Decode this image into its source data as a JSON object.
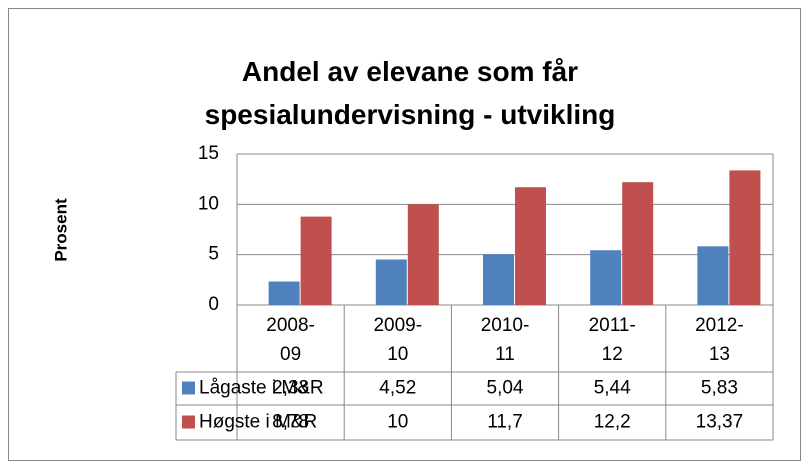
{
  "chart_data": {
    "type": "bar",
    "title": "Andel av elevane som får spesialundervisning - utvikling",
    "y_label": "Prosent",
    "categories": [
      "2008-09",
      "2009-10",
      "2010-11",
      "2011-12",
      "2012-13"
    ],
    "series": [
      {
        "name": "Lågaste i M&R",
        "color": "#4f81bd",
        "values": [
          2.33,
          4.52,
          5.04,
          5.44,
          5.83
        ],
        "value_labels": [
          "2,33",
          "4,52",
          "5,04",
          "5,44",
          "5,83"
        ]
      },
      {
        "name": "Høgste i M&R",
        "color": "#c0504d",
        "values": [
          8.78,
          10,
          11.7,
          12.2,
          13.37
        ],
        "value_labels": [
          "8,78",
          "10",
          "11,7",
          "12,2",
          "13,37"
        ]
      }
    ],
    "ylim": [
      0,
      15
    ],
    "yticks": [
      0,
      5,
      10,
      15
    ],
    "grid": true
  }
}
